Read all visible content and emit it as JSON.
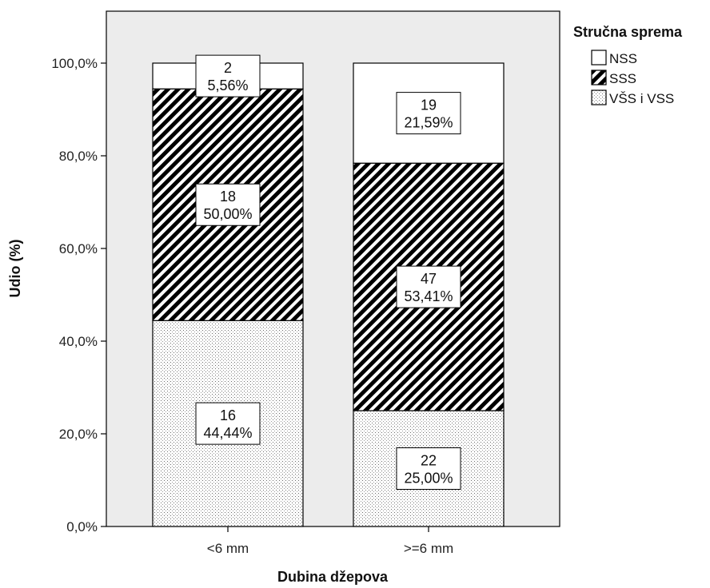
{
  "chart_data": {
    "type": "bar",
    "stacked": true,
    "percent": true,
    "title": "",
    "xlabel": "Dubina džepova",
    "ylabel": "Udio (%)",
    "categories": [
      "<6 mm",
      ">=6 mm"
    ],
    "yticks": [
      "0,0%",
      "20,0%",
      "40,0%",
      "60,0%",
      "80,0%",
      "100,0%"
    ],
    "ylim": [
      0,
      100
    ],
    "legend": {
      "title": "Stručna sprema",
      "position": "top-right"
    },
    "series": [
      {
        "name": "VŠS i VSS",
        "pattern": "dots",
        "counts": [
          16,
          22
        ],
        "values": [
          44.44,
          25.0
        ],
        "labels": [
          "44,44%",
          "25,00%"
        ]
      },
      {
        "name": "SSS",
        "pattern": "hatch",
        "counts": [
          18,
          47
        ],
        "values": [
          50.0,
          53.41
        ],
        "labels": [
          "50,00%",
          "53,41%"
        ]
      },
      {
        "name": "NSS",
        "pattern": "plain",
        "counts": [
          2,
          19
        ],
        "values": [
          5.56,
          21.59
        ],
        "labels": [
          "5,56%",
          "21,59%"
        ]
      }
    ],
    "legend_order": [
      "NSS",
      "SSS",
      "VŠS i VSS"
    ],
    "colors": {
      "plot_background": "#ececec",
      "bar_fill": "#ffffff",
      "ink": "#000000"
    }
  }
}
